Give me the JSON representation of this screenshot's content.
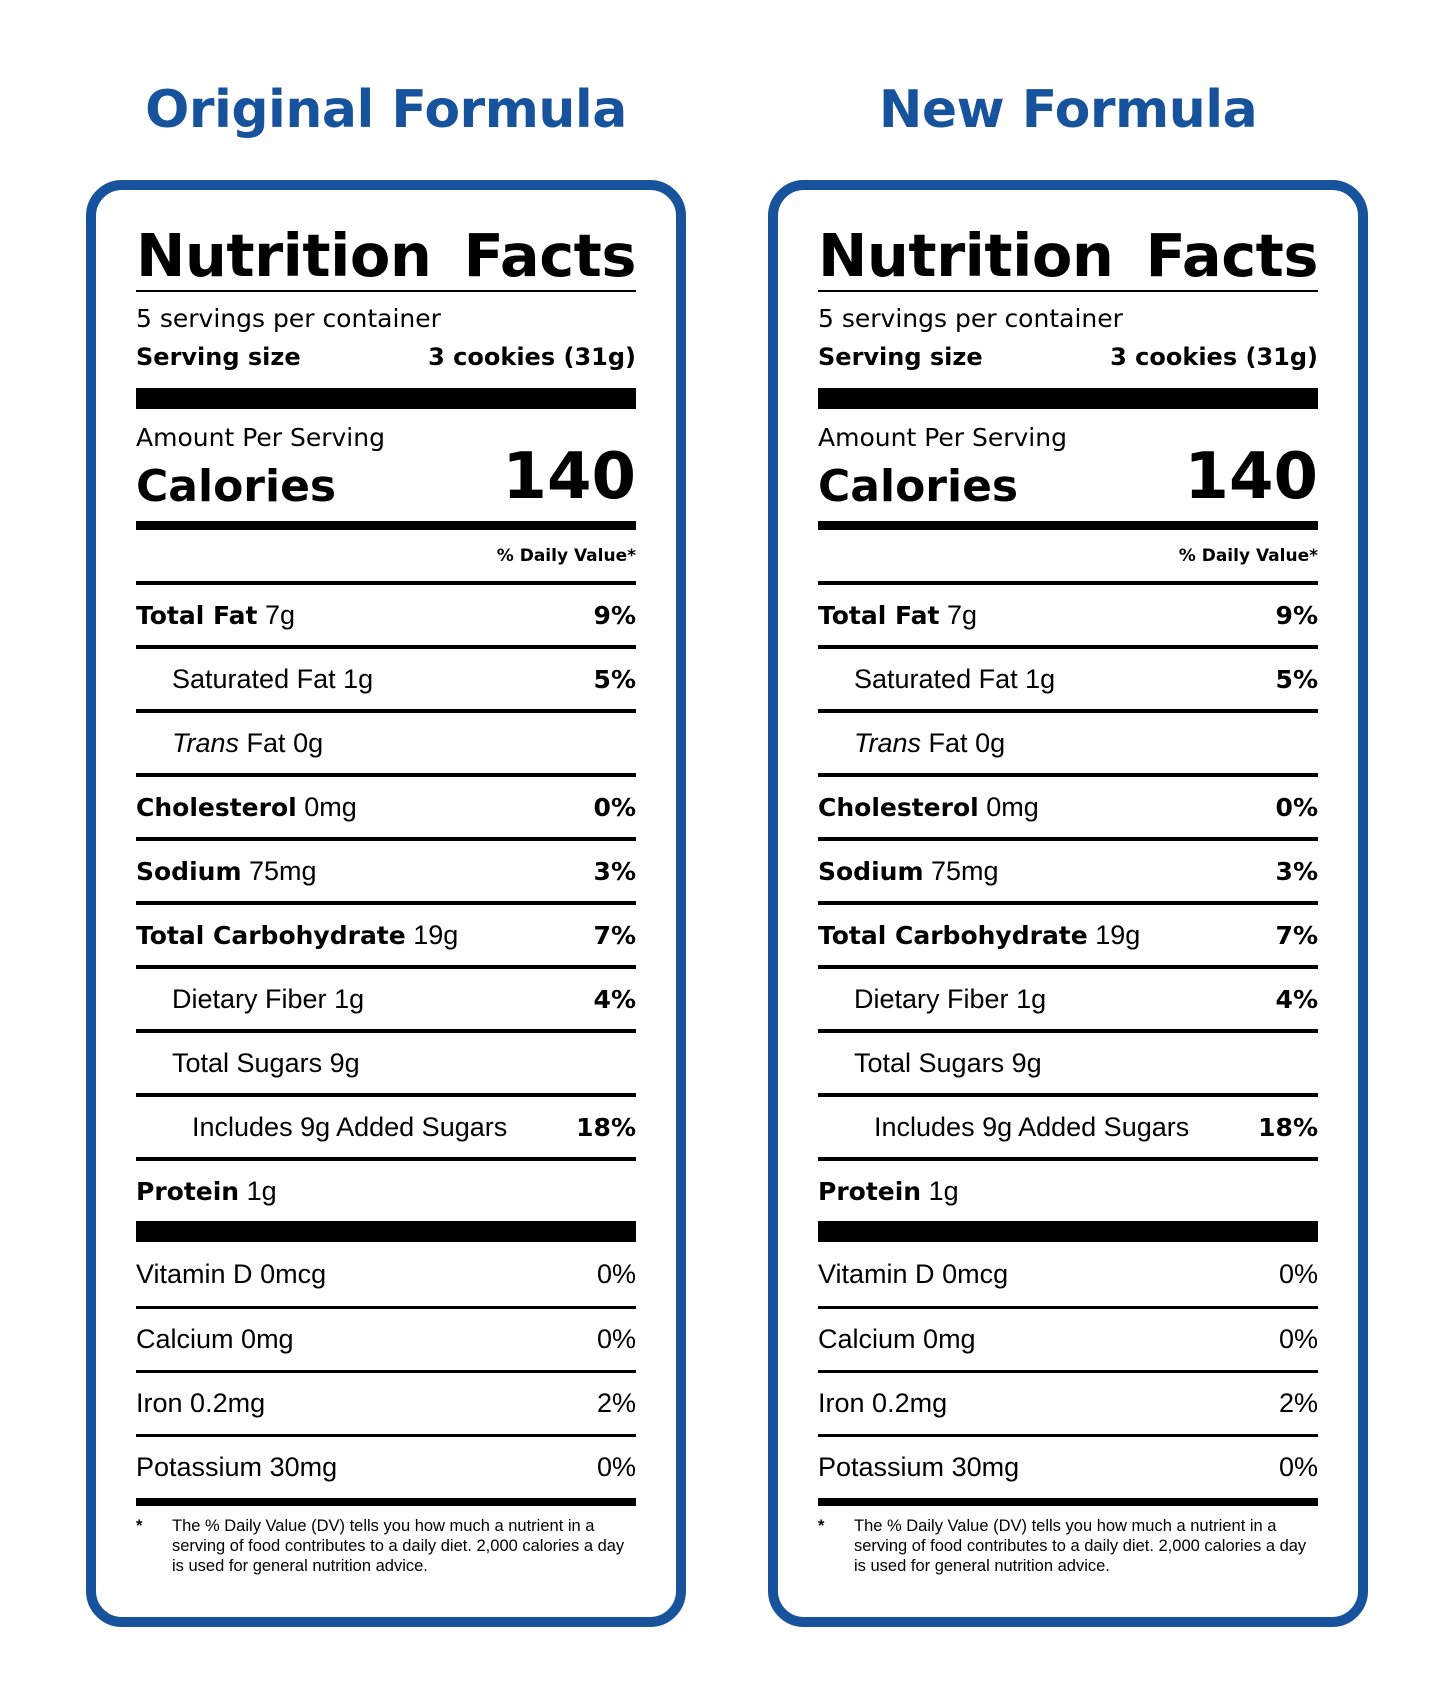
{
  "colors": {
    "brand_blue": "#17539c",
    "ink": "#000000"
  },
  "panels": [
    {
      "heading": "Original Formula",
      "label": {
        "title": "Nutrition Facts",
        "servings_per_container": "5 servings per container",
        "serving_size_label": "Serving size",
        "serving_size_value": "3 cookies (31g)",
        "amount_per_serving": "Amount Per Serving",
        "calories_label": "Calories",
        "calories_value": "140",
        "dv_header": "% Daily Value*",
        "nutrients": [
          {
            "name": "Total Fat",
            "amount": "7g",
            "dv": "9%"
          },
          {
            "name": "Saturated Fat",
            "amount": "1g",
            "dv": "5%"
          },
          {
            "name_italic": "Trans",
            "name": "Fat",
            "amount": "0g",
            "dv": ""
          },
          {
            "name": "Cholesterol",
            "amount": "0mg",
            "dv": "0%"
          },
          {
            "name": "Sodium",
            "amount": "75mg",
            "dv": "3%"
          },
          {
            "name": "Total Carbohydrate",
            "amount": "19g",
            "dv": "7%"
          },
          {
            "name": "Dietary Fiber",
            "amount": "1g",
            "dv": "4%"
          },
          {
            "name": "Total Sugars",
            "amount": "9g",
            "dv": ""
          },
          {
            "name": "Includes 9g Added Sugars",
            "amount": "",
            "dv": "18%"
          },
          {
            "name": "Protein",
            "amount": "1g",
            "dv": ""
          }
        ],
        "vitamins": [
          {
            "name": "Vitamin D",
            "amount": "0mcg",
            "dv": "0%"
          },
          {
            "name": "Calcium",
            "amount": "0mg",
            "dv": "0%"
          },
          {
            "name": "Iron",
            "amount": "0.2mg",
            "dv": "2%"
          },
          {
            "name": "Potassium",
            "amount": "30mg",
            "dv": "0%"
          }
        ],
        "footnote_star": "*",
        "footnote": "The % Daily Value (DV) tells you how much a nutrient in a serving of food contributes to a daily diet. 2,000 calories a day is used for general nutrition advice."
      }
    },
    {
      "heading": "New Formula",
      "label": {
        "title": "Nutrition Facts",
        "servings_per_container": "5 servings per container",
        "serving_size_label": "Serving size",
        "serving_size_value": "3 cookies (31g)",
        "amount_per_serving": "Amount Per Serving",
        "calories_label": "Calories",
        "calories_value": "140",
        "dv_header": "% Daily Value*",
        "nutrients": [
          {
            "name": "Total Fat",
            "amount": "7g",
            "dv": "9%"
          },
          {
            "name": "Saturated Fat",
            "amount": "1g",
            "dv": "5%"
          },
          {
            "name_italic": "Trans",
            "name": "Fat",
            "amount": "0g",
            "dv": ""
          },
          {
            "name": "Cholesterol",
            "amount": "0mg",
            "dv": "0%"
          },
          {
            "name": "Sodium",
            "amount": "75mg",
            "dv": "3%"
          },
          {
            "name": "Total Carbohydrate",
            "amount": "19g",
            "dv": "7%"
          },
          {
            "name": "Dietary Fiber",
            "amount": "1g",
            "dv": "4%"
          },
          {
            "name": "Total Sugars",
            "amount": "9g",
            "dv": ""
          },
          {
            "name": "Includes 9g Added Sugars",
            "amount": "",
            "dv": "18%"
          },
          {
            "name": "Protein",
            "amount": "1g",
            "dv": ""
          }
        ],
        "vitamins": [
          {
            "name": "Vitamin D",
            "amount": "0mcg",
            "dv": "0%"
          },
          {
            "name": "Calcium",
            "amount": "0mg",
            "dv": "0%"
          },
          {
            "name": "Iron",
            "amount": "0.2mg",
            "dv": "2%"
          },
          {
            "name": "Potassium",
            "amount": "30mg",
            "dv": "0%"
          }
        ],
        "footnote_star": "*",
        "footnote": "The % Daily Value (DV) tells you how much a nutrient in a serving of food contributes to a daily diet. 2,000 calories a day is used for general nutrition advice."
      }
    }
  ]
}
